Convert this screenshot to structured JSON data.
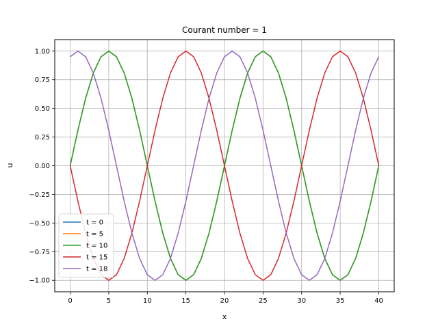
{
  "chart_data": {
    "type": "line",
    "title": "Courant number = 1",
    "xlabel": "x",
    "ylabel": "u",
    "xlim": [
      -2,
      42
    ],
    "ylim": [
      -1.1,
      1.1
    ],
    "xticks": [
      0,
      5,
      10,
      15,
      20,
      25,
      30,
      35,
      40
    ],
    "yticks": [
      -1.0,
      -0.75,
      -0.5,
      -0.25,
      0.0,
      0.25,
      0.5,
      0.75,
      1.0
    ],
    "xtick_labels": [
      "0",
      "5",
      "10",
      "15",
      "20",
      "25",
      "30",
      "35",
      "40"
    ],
    "ytick_labels": [
      "−1.00",
      "−0.75",
      "−0.50",
      "−0.25",
      "0.00",
      "0.25",
      "0.50",
      "0.75",
      "1.00"
    ],
    "grid": true,
    "legend_position": "lower-left",
    "x": [
      0,
      1,
      2,
      3,
      4,
      5,
      6,
      7,
      8,
      9,
      10,
      11,
      12,
      13,
      14,
      15,
      16,
      17,
      18,
      19,
      20,
      21,
      22,
      23,
      24,
      25,
      26,
      27,
      28,
      29,
      30,
      31,
      32,
      33,
      34,
      35,
      36,
      37,
      38,
      39,
      40
    ],
    "series": [
      {
        "name": "t = 0",
        "color": "#1f77b4",
        "values": [
          0.0,
          0.309,
          0.588,
          0.809,
          0.951,
          1.0,
          0.951,
          0.809,
          0.588,
          0.309,
          0.0,
          -0.309,
          -0.588,
          -0.809,
          -0.951,
          -1.0,
          -0.951,
          -0.809,
          -0.588,
          -0.309,
          0.0,
          0.309,
          0.588,
          0.809,
          0.951,
          1.0,
          0.951,
          0.809,
          0.588,
          0.309,
          0.0,
          -0.309,
          -0.588,
          -0.809,
          -0.951,
          -1.0,
          -0.951,
          -0.809,
          -0.588,
          -0.309,
          0.0
        ]
      },
      {
        "name": "t = 5",
        "color": "#ff7f0e",
        "values": [
          0.0,
          0.309,
          0.588,
          0.809,
          0.951,
          1.0,
          0.951,
          0.809,
          0.588,
          0.309,
          0.0,
          -0.309,
          -0.588,
          -0.809,
          -0.951,
          -1.0,
          -0.951,
          -0.809,
          -0.588,
          -0.309,
          0.0,
          0.309,
          0.588,
          0.809,
          0.951,
          1.0,
          0.951,
          0.809,
          0.588,
          0.309,
          0.0,
          -0.309,
          -0.588,
          -0.809,
          -0.951,
          -1.0,
          -0.951,
          -0.809,
          -0.588,
          -0.309,
          0.0
        ]
      },
      {
        "name": "t = 10",
        "color": "#2ca02c",
        "values": [
          0.0,
          0.309,
          0.588,
          0.809,
          0.951,
          1.0,
          0.951,
          0.809,
          0.588,
          0.309,
          0.0,
          -0.309,
          -0.588,
          -0.809,
          -0.951,
          -1.0,
          -0.951,
          -0.809,
          -0.588,
          -0.309,
          0.0,
          0.309,
          0.588,
          0.809,
          0.951,
          1.0,
          0.951,
          0.809,
          0.588,
          0.309,
          0.0,
          -0.309,
          -0.588,
          -0.809,
          -0.951,
          -1.0,
          -0.951,
          -0.809,
          -0.588,
          -0.309,
          0.0
        ]
      },
      {
        "name": "t = 15",
        "color": "#d62728",
        "values": [
          0.0,
          -0.309,
          -0.588,
          -0.809,
          -0.951,
          -1.0,
          -0.951,
          -0.809,
          -0.588,
          -0.309,
          0.0,
          0.309,
          0.588,
          0.809,
          0.951,
          1.0,
          0.951,
          0.809,
          0.588,
          0.309,
          0.0,
          -0.309,
          -0.588,
          -0.809,
          -0.951,
          -1.0,
          -0.951,
          -0.809,
          -0.588,
          -0.309,
          0.0,
          0.309,
          0.588,
          0.809,
          0.951,
          1.0,
          0.951,
          0.809,
          0.588,
          0.309,
          0.0
        ]
      },
      {
        "name": "t = 18",
        "color": "#9467bd",
        "values": [
          0.951,
          1.0,
          0.951,
          0.809,
          0.588,
          0.309,
          0.0,
          -0.309,
          -0.588,
          -0.809,
          -0.951,
          -1.0,
          -0.951,
          -0.809,
          -0.588,
          -0.309,
          0.0,
          0.309,
          0.588,
          0.809,
          0.951,
          1.0,
          0.951,
          0.809,
          0.588,
          0.309,
          0.0,
          -0.309,
          -0.588,
          -0.809,
          -0.951,
          -1.0,
          -0.951,
          -0.809,
          -0.588,
          -0.309,
          0.0,
          0.309,
          0.588,
          0.809,
          0.951
        ]
      }
    ]
  }
}
